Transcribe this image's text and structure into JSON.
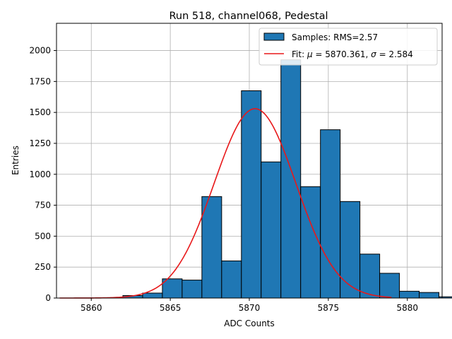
{
  "chart_data": {
    "type": "bar",
    "title": "Run 518, channel068, Pedestal",
    "xlabel": "ADC Counts",
    "ylabel": "Entries",
    "xlim": [
      5857.8,
      5882.2
    ],
    "ylim": [
      0,
      2220
    ],
    "xticks": [
      5860,
      5865,
      5870,
      5875,
      5880
    ],
    "yticks": [
      0,
      250,
      500,
      750,
      1000,
      1250,
      1500,
      1750,
      2000
    ],
    "grid": true,
    "legend_position": "top-right",
    "bin_width": 1.25,
    "bins": [
      {
        "left": 5862.0,
        "value": 20
      },
      {
        "left": 5863.25,
        "value": 40
      },
      {
        "left": 5864.5,
        "value": 155
      },
      {
        "left": 5865.75,
        "value": 145
      },
      {
        "left": 5867.0,
        "value": 820
      },
      {
        "left": 5868.25,
        "value": 300
      },
      {
        "left": 5869.5,
        "value": 1675
      },
      {
        "left": 5870.75,
        "value": 1100
      },
      {
        "left": 5872.0,
        "value": 1925
      },
      {
        "left": 5873.25,
        "value": 900
      },
      {
        "left": 5874.5,
        "value": 1360
      },
      {
        "left": 5875.75,
        "value": 780
      },
      {
        "left": 5877.0,
        "value": 355
      },
      {
        "left": 5878.25,
        "value": 200
      },
      {
        "left": 5879.5,
        "value": 55
      },
      {
        "left": 5880.75,
        "value": 45
      },
      {
        "left": 5882.0,
        "value": 10
      }
    ],
    "fit": {
      "mu": 5870.361,
      "sigma": 2.584,
      "amplitude": 1530,
      "x_range": [
        5858,
        5879
      ]
    },
    "legend": {
      "hist_label": "Samples: RMS=2.57",
      "fit_prefix": "Fit: ",
      "mu_symbol": "μ",
      "mu_text": " = 5870.361, ",
      "sigma_symbol": "σ",
      "sigma_text": " = 2.584"
    },
    "colors": {
      "bar": "#1f77b4",
      "bar_edge": "#000000",
      "fit": "#e8181a",
      "grid": "#b0b0b0"
    }
  }
}
